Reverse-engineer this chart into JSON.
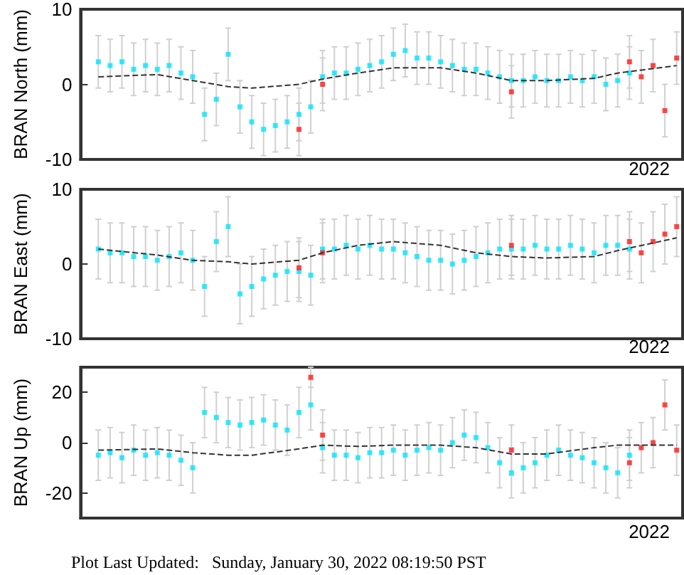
{
  "chart_data": [
    {
      "type": "scatter",
      "ylabel": "BRAN North (mm)",
      "categories": [
        null,
        null,
        null,
        null,
        null,
        null,
        null,
        null,
        null,
        null,
        null,
        null,
        null,
        null,
        null,
        null,
        null,
        null,
        null,
        null,
        null,
        null,
        null,
        null,
        null,
        null,
        null,
        null,
        null,
        null,
        null,
        null,
        null,
        null,
        null,
        null,
        null,
        null,
        null,
        null,
        null,
        null,
        null,
        null,
        null,
        null,
        null,
        null,
        null,
        null,
        null
      ],
      "ylim": [
        -10,
        10
      ],
      "yticks": [
        -10,
        0,
        10
      ],
      "grid": false,
      "annotations": [
        "2022"
      ],
      "series": [
        {
          "color": "#00e5ff",
          "marker": "square",
          "values": [
            null,
            3,
            2.5,
            3,
            2,
            2.5,
            2,
            2.5,
            1.5,
            1,
            -4,
            -2,
            4,
            -3,
            -5,
            -6,
            -5.5,
            -5,
            -4,
            -3,
            1,
            1.5,
            1.5,
            2,
            2.5,
            3,
            4,
            4.5,
            3.5,
            3.5,
            3,
            2.5,
            2,
            2,
            1.5,
            1,
            0.5,
            0.5,
            1,
            0.5,
            0.5,
            1,
            0.5,
            1,
            0,
            0.5,
            1.5,
            null,
            null,
            null,
            null
          ],
          "errors": [
            null,
            3.5,
            3.5,
            3.5,
            3.5,
            3.5,
            3.5,
            3.5,
            3.5,
            3.5,
            3.5,
            3.5,
            3.5,
            3.5,
            3.5,
            3.5,
            3.5,
            3.5,
            3.5,
            3.5,
            3.5,
            3.5,
            3.5,
            3.5,
            3.5,
            3.5,
            3.5,
            3.5,
            3.5,
            3.5,
            3.5,
            3.5,
            3.5,
            3.5,
            3.5,
            3.5,
            3.5,
            3.5,
            3.5,
            3.5,
            3.5,
            3.5,
            3.5,
            3.5,
            3.5,
            3.5,
            3.5,
            null,
            null,
            null,
            null
          ]
        },
        {
          "color": "#ff1a1a",
          "marker": "square",
          "values": [
            null,
            null,
            null,
            null,
            null,
            null,
            null,
            null,
            null,
            null,
            null,
            null,
            null,
            null,
            null,
            null,
            null,
            null,
            -6,
            null,
            0,
            null,
            null,
            null,
            null,
            null,
            null,
            null,
            null,
            null,
            null,
            null,
            null,
            null,
            null,
            null,
            -1,
            null,
            null,
            null,
            null,
            null,
            null,
            null,
            null,
            null,
            3,
            1,
            2.5,
            -3.5,
            3.5
          ],
          "errors": [
            null,
            null,
            null,
            null,
            null,
            null,
            null,
            null,
            null,
            null,
            null,
            null,
            null,
            null,
            null,
            null,
            null,
            null,
            3.5,
            null,
            3.5,
            null,
            null,
            null,
            null,
            null,
            null,
            null,
            null,
            null,
            null,
            null,
            null,
            null,
            null,
            null,
            3.5,
            null,
            null,
            null,
            null,
            null,
            null,
            null,
            null,
            null,
            3.5,
            3.5,
            3.5,
            3.5,
            3.5
          ]
        },
        {
          "type": "line",
          "line_style": "dashed",
          "color": "#333333",
          "values": [
            null,
            1,
            null,
            null,
            null,
            null,
            1.3,
            null,
            null,
            0.5,
            null,
            null,
            -0.3,
            null,
            -0.5,
            null,
            null,
            null,
            0,
            null,
            0.7,
            null,
            null,
            1.5,
            null,
            null,
            2.2,
            null,
            null,
            null,
            2.2,
            null,
            null,
            1.5,
            null,
            null,
            0.5,
            null,
            null,
            0.5,
            null,
            null,
            null,
            0.8,
            null,
            1.5,
            null,
            null,
            null,
            null,
            2.5
          ]
        }
      ]
    },
    {
      "type": "scatter",
      "ylabel": "BRAN East (mm)",
      "categories": [
        null,
        null,
        null,
        null,
        null,
        null,
        null,
        null,
        null,
        null,
        null,
        null,
        null,
        null,
        null,
        null,
        null,
        null,
        null,
        null,
        null,
        null,
        null,
        null,
        null,
        null,
        null,
        null,
        null,
        null,
        null,
        null,
        null,
        null,
        null,
        null,
        null,
        null,
        null,
        null,
        null,
        null,
        null,
        null,
        null,
        null,
        null,
        null,
        null,
        null,
        null
      ],
      "ylim": [
        -10,
        10
      ],
      "yticks": [
        -10,
        0,
        10
      ],
      "grid": false,
      "annotations": [
        "2022"
      ],
      "series": [
        {
          "color": "#00e5ff",
          "marker": "square",
          "values": [
            null,
            2,
            1.5,
            1.5,
            1,
            1,
            0.5,
            1,
            1.5,
            0.5,
            -3,
            3,
            5,
            -4,
            -3,
            -2,
            -1.5,
            -1,
            -1,
            -1.5,
            2,
            2,
            2.5,
            2,
            2.5,
            2,
            2,
            1.5,
            1,
            0.5,
            0.5,
            0,
            0.5,
            1,
            1.5,
            2,
            2,
            2,
            2.5,
            2,
            2,
            2.5,
            2,
            1.5,
            2.5,
            2.5,
            2,
            null,
            null,
            null,
            null
          ],
          "errors": [
            null,
            4,
            4,
            4,
            4,
            4,
            4,
            4,
            4,
            4,
            4,
            4,
            4,
            4,
            4,
            4,
            4,
            4,
            4,
            4,
            4,
            4,
            4,
            4,
            4,
            4,
            4,
            4,
            4,
            4,
            4,
            4,
            4,
            4,
            4,
            4,
            4,
            4,
            4,
            4,
            4,
            4,
            4,
            4,
            4,
            4,
            4,
            null,
            null,
            null,
            null
          ]
        },
        {
          "color": "#ff1a1a",
          "marker": "square",
          "values": [
            null,
            null,
            null,
            null,
            null,
            null,
            null,
            null,
            null,
            null,
            null,
            null,
            null,
            null,
            null,
            null,
            null,
            null,
            -0.5,
            null,
            1.5,
            null,
            null,
            null,
            null,
            null,
            null,
            null,
            null,
            null,
            null,
            null,
            null,
            null,
            null,
            null,
            2.5,
            null,
            null,
            null,
            null,
            null,
            null,
            null,
            null,
            null,
            3,
            1.5,
            3,
            4,
            5
          ],
          "errors": [
            null,
            null,
            null,
            null,
            null,
            null,
            null,
            null,
            null,
            null,
            null,
            null,
            null,
            null,
            null,
            null,
            null,
            null,
            4,
            null,
            4,
            null,
            null,
            null,
            null,
            null,
            null,
            null,
            null,
            null,
            null,
            null,
            null,
            null,
            null,
            null,
            4,
            null,
            null,
            null,
            null,
            null,
            null,
            null,
            null,
            null,
            4,
            4,
            4,
            4,
            4
          ]
        },
        {
          "type": "line",
          "line_style": "dashed",
          "color": "#333333",
          "values": [
            null,
            2,
            null,
            null,
            null,
            null,
            1.2,
            null,
            null,
            0.5,
            null,
            null,
            0.3,
            null,
            0,
            null,
            null,
            null,
            0.5,
            null,
            1.5,
            null,
            null,
            2.5,
            null,
            null,
            3,
            null,
            null,
            null,
            2.5,
            null,
            null,
            1.5,
            null,
            null,
            1,
            null,
            null,
            0.8,
            null,
            null,
            null,
            1,
            null,
            1.8,
            null,
            null,
            null,
            null,
            3.5
          ]
        }
      ]
    },
    {
      "type": "scatter",
      "ylabel": "BRAN Up (mm)",
      "categories": [
        null,
        null,
        null,
        null,
        null,
        null,
        null,
        null,
        null,
        null,
        null,
        null,
        null,
        null,
        null,
        null,
        null,
        null,
        null,
        null,
        null,
        null,
        null,
        null,
        null,
        null,
        null,
        null,
        null,
        null,
        null,
        null,
        null,
        null,
        null,
        null,
        null,
        null,
        null,
        null,
        null,
        null,
        null,
        null,
        null,
        null,
        null,
        null,
        null,
        null,
        null
      ],
      "ylim": [
        -30,
        30
      ],
      "yticks": [
        -20,
        0,
        20
      ],
      "grid": false,
      "annotations": [
        "2022",
        "Plot Last Updated:   Sunday, January 30, 2022 08:19:50 PST"
      ],
      "series": [
        {
          "color": "#00e5ff",
          "marker": "square",
          "values": [
            null,
            -5,
            -4,
            -6,
            -3,
            -5,
            -4,
            -5,
            -7,
            -10,
            12,
            10,
            8,
            7,
            8,
            9,
            7,
            5,
            12,
            15,
            -2,
            -5,
            -5,
            -6,
            -4,
            -4,
            -3,
            -5,
            -3,
            -2,
            -3,
            0,
            3,
            2,
            -2,
            -8,
            -12,
            -10,
            -8,
            -5,
            -3,
            -5,
            -6,
            -8,
            -10,
            -12,
            -5,
            null,
            null,
            null,
            null
          ],
          "errors": [
            null,
            10,
            10,
            10,
            10,
            10,
            10,
            10,
            10,
            10,
            10,
            10,
            10,
            10,
            10,
            10,
            10,
            10,
            10,
            10,
            10,
            10,
            10,
            10,
            10,
            10,
            10,
            10,
            10,
            10,
            10,
            10,
            10,
            10,
            10,
            10,
            10,
            10,
            10,
            10,
            10,
            10,
            10,
            10,
            10,
            10,
            10,
            null,
            null,
            null,
            null
          ]
        },
        {
          "color": "#ff1a1a",
          "marker": "square",
          "values": [
            null,
            null,
            null,
            null,
            null,
            null,
            null,
            null,
            null,
            null,
            null,
            null,
            null,
            null,
            null,
            null,
            null,
            null,
            null,
            26,
            3,
            null,
            null,
            null,
            null,
            null,
            null,
            null,
            null,
            null,
            null,
            null,
            null,
            null,
            null,
            null,
            -3,
            null,
            null,
            null,
            null,
            null,
            null,
            null,
            null,
            null,
            -8,
            -2,
            0,
            15,
            -3
          ],
          "errors": [
            null,
            null,
            null,
            null,
            null,
            null,
            null,
            null,
            null,
            null,
            null,
            null,
            null,
            null,
            null,
            null,
            null,
            null,
            null,
            4,
            10,
            null,
            null,
            null,
            null,
            null,
            null,
            null,
            null,
            null,
            null,
            null,
            null,
            null,
            null,
            null,
            10,
            null,
            null,
            null,
            null,
            null,
            null,
            null,
            null,
            null,
            10,
            10,
            10,
            10,
            10
          ]
        },
        {
          "type": "line",
          "line_style": "dashed",
          "color": "#333333",
          "values": [
            null,
            -3,
            null,
            null,
            null,
            null,
            -2.5,
            null,
            null,
            -4,
            null,
            null,
            -5,
            null,
            -5,
            null,
            null,
            null,
            -2.5,
            null,
            -1,
            null,
            null,
            -1.5,
            null,
            null,
            -1,
            null,
            null,
            null,
            -1,
            null,
            null,
            -2,
            null,
            null,
            -4.5,
            null,
            null,
            -4.5,
            null,
            null,
            null,
            -2,
            null,
            -1,
            null,
            null,
            null,
            null,
            -1
          ]
        }
      ]
    }
  ]
}
